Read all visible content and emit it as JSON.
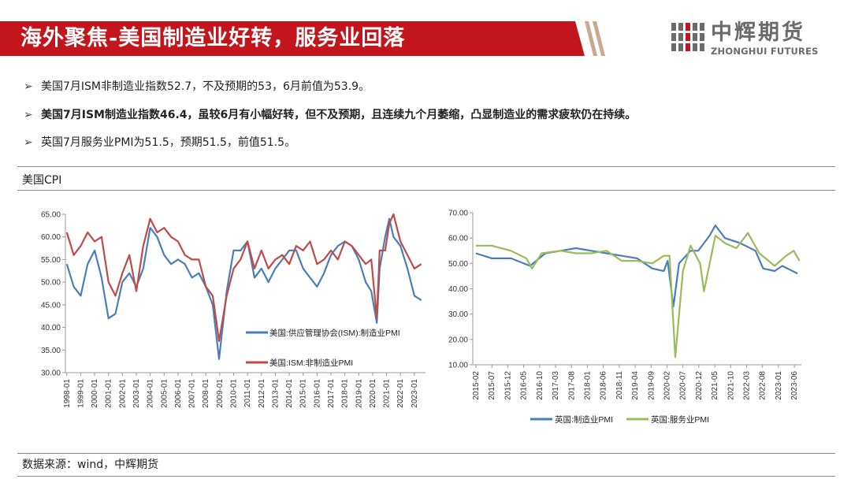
{
  "header": {
    "title": "海外聚焦-美国制造业好转，服务业回落",
    "logo_cn": "中辉期货",
    "logo_en": "ZHONGHUI FUTURES"
  },
  "colors": {
    "brand_red": "#c3151c",
    "series_blue": "#4a7ebb",
    "series_red": "#be4b48",
    "series_green": "#9bbb59"
  },
  "bullets": [
    "美国7月ISM非制造业指数52.7，不及预期的53，6月前值为53.9。",
    "美国7月ISM制造业指数46.4，虽较6月有小幅好转，但不及预期，且连续九个月萎缩，凸显制造业的需求疲软仍在持续。",
    "英国7月服务业PMI为51.5，预期51.5，前值51.5。"
  ],
  "section_label": "美国CPI",
  "source": "数据来源：wind，中辉期货",
  "chart_data": [
    {
      "type": "line",
      "ylim": [
        30,
        65
      ],
      "yticks": [
        "30.00",
        "35.00",
        "40.00",
        "45.00",
        "50.00",
        "55.00",
        "60.00",
        "65.00"
      ],
      "xticks": [
        "1998-01",
        "1999-01",
        "2000-01",
        "2001-01",
        "2002-01",
        "2003-01",
        "2004-01",
        "2005-01",
        "2006-01",
        "2007-01",
        "2008-01",
        "2009-01",
        "2010-01",
        "2011-01",
        "2012-01",
        "2013-01",
        "2014-01",
        "2015-01",
        "2016-01",
        "2017-01",
        "2018-01",
        "2019-01",
        "2020-01",
        "2021-01",
        "2022-01",
        "2023-01"
      ],
      "x_start": 1998.0,
      "legend_placement": "inside-lower-right",
      "series": [
        {
          "name": "美国:供应管理协会(ISM):制造业PMI",
          "color": "#4a7ebb",
          "points": [
            [
              1998.0,
              54
            ],
            [
              1998.5,
              49
            ],
            [
              1999.0,
              47
            ],
            [
              1999.5,
              54
            ],
            [
              2000.0,
              57
            ],
            [
              2000.5,
              51
            ],
            [
              2001.0,
              42
            ],
            [
              2001.5,
              43
            ],
            [
              2002.0,
              50
            ],
            [
              2002.5,
              52
            ],
            [
              2003.0,
              49
            ],
            [
              2003.5,
              53
            ],
            [
              2004.0,
              62
            ],
            [
              2004.5,
              60
            ],
            [
              2005.0,
              56
            ],
            [
              2005.5,
              54
            ],
            [
              2006.0,
              55
            ],
            [
              2006.5,
              54
            ],
            [
              2007.0,
              51
            ],
            [
              2007.5,
              52
            ],
            [
              2008.0,
              49
            ],
            [
              2008.5,
              45
            ],
            [
              2008.95,
              33
            ],
            [
              2009.5,
              48
            ],
            [
              2010.0,
              57
            ],
            [
              2010.5,
              57
            ],
            [
              2011.0,
              59
            ],
            [
              2011.5,
              51
            ],
            [
              2012.0,
              53
            ],
            [
              2012.5,
              50
            ],
            [
              2013.0,
              53
            ],
            [
              2013.5,
              55
            ],
            [
              2014.0,
              57
            ],
            [
              2014.5,
              57
            ],
            [
              2015.0,
              53
            ],
            [
              2015.5,
              51
            ],
            [
              2016.0,
              49
            ],
            [
              2016.5,
              52
            ],
            [
              2017.0,
              56
            ],
            [
              2017.5,
              58
            ],
            [
              2018.0,
              59
            ],
            [
              2018.5,
              58
            ],
            [
              2019.0,
              55
            ],
            [
              2019.5,
              50
            ],
            [
              2019.9,
              48
            ],
            [
              2020.3,
              41
            ],
            [
              2020.5,
              53
            ],
            [
              2020.9,
              60
            ],
            [
              2021.2,
              64
            ],
            [
              2021.5,
              60
            ],
            [
              2022.0,
              58
            ],
            [
              2022.5,
              53
            ],
            [
              2023.0,
              47
            ],
            [
              2023.5,
              46
            ]
          ]
        },
        {
          "name": "美国:ISM:非制造业PMI",
          "color": "#be4b48",
          "points": [
            [
              1998.0,
              61
            ],
            [
              1998.5,
              56
            ],
            [
              1999.0,
              58
            ],
            [
              1999.5,
              61
            ],
            [
              2000.0,
              59
            ],
            [
              2000.5,
              60
            ],
            [
              2001.0,
              50
            ],
            [
              2001.5,
              47
            ],
            [
              2002.0,
              52
            ],
            [
              2002.5,
              56
            ],
            [
              2003.0,
              48
            ],
            [
              2003.5,
              58
            ],
            [
              2004.0,
              64
            ],
            [
              2004.5,
              61
            ],
            [
              2005.0,
              62
            ],
            [
              2005.5,
              60
            ],
            [
              2006.0,
              59
            ],
            [
              2006.5,
              56
            ],
            [
              2007.0,
              55
            ],
            [
              2007.5,
              55
            ],
            [
              2008.0,
              49
            ],
            [
              2008.5,
              47
            ],
            [
              2008.95,
              37
            ],
            [
              2009.5,
              47
            ],
            [
              2010.0,
              53
            ],
            [
              2010.5,
              55
            ],
            [
              2011.0,
              59
            ],
            [
              2011.5,
              53
            ],
            [
              2012.0,
              57
            ],
            [
              2012.5,
              53
            ],
            [
              2013.0,
              55
            ],
            [
              2013.5,
              56
            ],
            [
              2014.0,
              54
            ],
            [
              2014.5,
              58
            ],
            [
              2015.0,
              57
            ],
            [
              2015.5,
              59
            ],
            [
              2016.0,
              54
            ],
            [
              2016.5,
              55
            ],
            [
              2017.0,
              57
            ],
            [
              2017.5,
              55
            ],
            [
              2018.0,
              59
            ],
            [
              2018.5,
              58
            ],
            [
              2019.0,
              56
            ],
            [
              2019.5,
              54
            ],
            [
              2019.9,
              55
            ],
            [
              2020.3,
              42
            ],
            [
              2020.5,
              57
            ],
            [
              2020.9,
              57
            ],
            [
              2021.2,
              63
            ],
            [
              2021.5,
              65
            ],
            [
              2022.0,
              59
            ],
            [
              2022.5,
              56
            ],
            [
              2023.0,
              53
            ],
            [
              2023.5,
              54
            ]
          ]
        }
      ]
    },
    {
      "type": "line",
      "ylim": [
        10,
        70
      ],
      "yticks": [
        "10.00",
        "20.00",
        "30.00",
        "40.00",
        "50.00",
        "60.00",
        "70.00"
      ],
      "xticks": [
        "2015-02",
        "2015-07",
        "2015-12",
        "2016-05",
        "2016-10",
        "2017-03",
        "2017-08",
        "2018-01",
        "2018-06",
        "2018-11",
        "2019-04",
        "2019-09",
        "2020-02",
        "2020-07",
        "2020-12",
        "2021-05",
        "2021-10",
        "2022-03",
        "2022-08",
        "2023-01",
        "2023-06"
      ],
      "x_start": "2015-02",
      "legend_placement": "bottom",
      "series": [
        {
          "name": "英国:制造业PMI",
          "color": "#4a7ebb",
          "points": [
            [
              2015.08,
              54
            ],
            [
              2015.5,
              52
            ],
            [
              2016.0,
              52
            ],
            [
              2016.5,
              49
            ],
            [
              2016.9,
              54
            ],
            [
              2017.3,
              55
            ],
            [
              2017.7,
              56
            ],
            [
              2018.1,
              55
            ],
            [
              2018.5,
              54
            ],
            [
              2018.9,
              53
            ],
            [
              2019.3,
              52
            ],
            [
              2019.7,
              48
            ],
            [
              2020.0,
              47
            ],
            [
              2020.1,
              51
            ],
            [
              2020.25,
              33
            ],
            [
              2020.4,
              50
            ],
            [
              2020.7,
              55
            ],
            [
              2020.9,
              55
            ],
            [
              2021.2,
              61
            ],
            [
              2021.35,
              65
            ],
            [
              2021.6,
              60
            ],
            [
              2022.0,
              58
            ],
            [
              2022.4,
              55
            ],
            [
              2022.6,
              48
            ],
            [
              2022.9,
              47
            ],
            [
              2023.1,
              49
            ],
            [
              2023.5,
              46
            ]
          ]
        },
        {
          "name": "英国:服务业PMI",
          "color": "#9bbb59",
          "points": [
            [
              2015.08,
              57
            ],
            [
              2015.5,
              57
            ],
            [
              2016.0,
              55
            ],
            [
              2016.4,
              52
            ],
            [
              2016.55,
              48
            ],
            [
              2016.8,
              54
            ],
            [
              2017.3,
              55
            ],
            [
              2017.7,
              54
            ],
            [
              2018.1,
              54
            ],
            [
              2018.5,
              55
            ],
            [
              2018.9,
              51
            ],
            [
              2019.3,
              51
            ],
            [
              2019.7,
              50
            ],
            [
              2020.0,
              53
            ],
            [
              2020.15,
              53
            ],
            [
              2020.3,
              13
            ],
            [
              2020.5,
              47
            ],
            [
              2020.7,
              57
            ],
            [
              2020.95,
              50
            ],
            [
              2021.05,
              39
            ],
            [
              2021.35,
              61
            ],
            [
              2021.6,
              58
            ],
            [
              2021.9,
              56
            ],
            [
              2022.2,
              62
            ],
            [
              2022.5,
              54
            ],
            [
              2022.9,
              49
            ],
            [
              2023.2,
              53
            ],
            [
              2023.4,
              55
            ],
            [
              2023.55,
              51
            ]
          ]
        }
      ]
    }
  ]
}
